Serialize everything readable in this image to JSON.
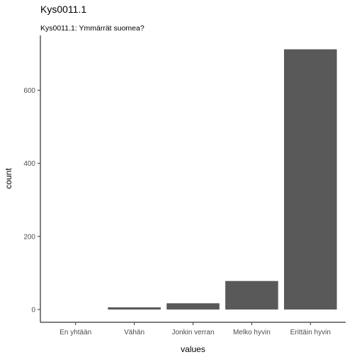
{
  "chart_data": {
    "type": "bar",
    "title": "Kys0011.1",
    "subtitle": "Kys0011.1: Ymmärrät suomea?",
    "xlabel": "values",
    "ylabel": "count",
    "categories": [
      "En yhtään",
      "Vähän",
      "Jonkin verran",
      "Melko hyvin",
      "Erittäin hyvin"
    ],
    "values": [
      0,
      6,
      17,
      78,
      712
    ],
    "ylim": [
      -35,
      750
    ],
    "yticks": [
      0,
      200,
      400,
      600
    ],
    "bar_color": "#595959",
    "grid": false
  }
}
